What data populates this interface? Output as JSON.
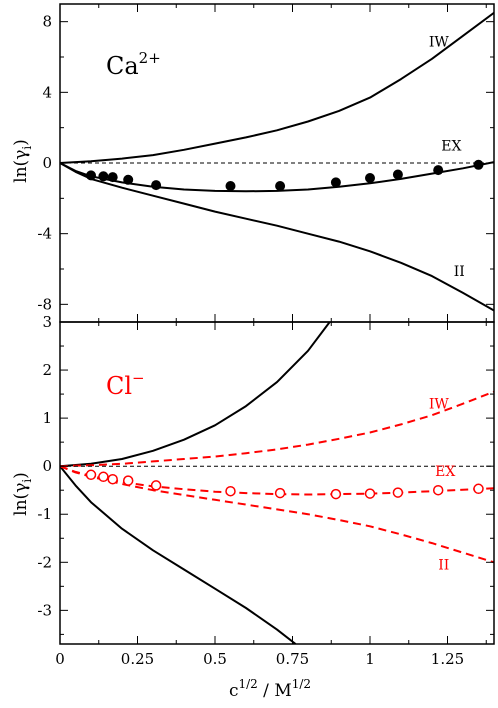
{
  "colors": {
    "black": "#000000",
    "red": "#ff0000"
  },
  "chart_data": [
    {
      "type": "line",
      "panel_label": "Ca",
      "panel_label_sup": "2+",
      "panel_label_color": "#000000",
      "ylabel": "ln(γ",
      "ylabel_sub": "i",
      "ylabel_end": ")",
      "xlim": [
        0,
        1.4
      ],
      "ylim": [
        -9,
        9
      ],
      "y_ticks": [
        8,
        4,
        0,
        -4,
        -8
      ],
      "y_tick_labels": [
        "8",
        "4",
        "0",
        "-4",
        "-8"
      ],
      "series": [
        {
          "name": "IW",
          "color": "#000000",
          "dash": false,
          "x": [
            0,
            0.1,
            0.2,
            0.3,
            0.4,
            0.5,
            0.6,
            0.7,
            0.8,
            0.9,
            1.0,
            1.1,
            1.2,
            1.3,
            1.4
          ],
          "y": [
            0,
            0.1,
            0.25,
            0.45,
            0.75,
            1.1,
            1.45,
            1.85,
            2.35,
            2.95,
            3.7,
            4.75,
            5.9,
            7.2,
            8.5
          ]
        },
        {
          "name": "EX",
          "color": "#000000",
          "dash": false,
          "x": [
            0,
            0.05,
            0.1,
            0.2,
            0.3,
            0.4,
            0.5,
            0.6,
            0.7,
            0.8,
            0.9,
            1.0,
            1.1,
            1.2,
            1.3,
            1.4
          ],
          "y": [
            0,
            -0.45,
            -0.75,
            -1.1,
            -1.35,
            -1.5,
            -1.58,
            -1.6,
            -1.58,
            -1.5,
            -1.35,
            -1.15,
            -0.9,
            -0.6,
            -0.3,
            0.05
          ]
        },
        {
          "name": "II",
          "color": "#000000",
          "dash": false,
          "x": [
            0,
            0.05,
            0.1,
            0.2,
            0.3,
            0.4,
            0.5,
            0.6,
            0.7,
            0.8,
            0.9,
            1.0,
            1.1,
            1.2,
            1.3,
            1.4
          ],
          "y": [
            0,
            -0.5,
            -0.9,
            -1.4,
            -1.85,
            -2.3,
            -2.75,
            -3.15,
            -3.55,
            -4.0,
            -4.45,
            -5.0,
            -5.65,
            -6.4,
            -7.35,
            -8.35
          ]
        },
        {
          "name": "zero",
          "color": "#000000",
          "dash": true,
          "thin": true,
          "x": [
            0,
            1.4
          ],
          "y": [
            0,
            0
          ]
        }
      ],
      "points": {
        "style": "filled",
        "color": "#000000",
        "x": [
          0.1,
          0.14,
          0.17,
          0.22,
          0.31,
          0.55,
          0.71,
          0.89,
          1.0,
          1.09,
          1.22,
          1.35
        ],
        "y": [
          -0.7,
          -0.75,
          -0.8,
          -0.95,
          -1.25,
          -1.3,
          -1.3,
          -1.1,
          -0.85,
          -0.65,
          -0.4,
          -0.1
        ]
      },
      "curve_labels": [
        {
          "text": "IW",
          "x": 1.19,
          "y": 6.6,
          "color": "#000000"
        },
        {
          "text": "EX",
          "x": 1.23,
          "y": 0.7,
          "color": "#000000"
        },
        {
          "text": "II",
          "x": 1.27,
          "y": -6.4,
          "color": "#000000"
        }
      ]
    },
    {
      "type": "line",
      "panel_label": "Cl",
      "panel_label_sup": "−",
      "panel_label_color": "#ff0000",
      "ylabel": "ln(γ",
      "ylabel_sub": "i",
      "ylabel_end": ")",
      "xlabel_pre": "c",
      "xlabel_sup1": "1/2",
      "xlabel_mid": " / M",
      "xlabel_sup2": "1/2",
      "xlim": [
        0,
        1.4
      ],
      "ylim": [
        -3.7,
        3.0
      ],
      "y_ticks": [
        3,
        2,
        1,
        0,
        -1,
        -2,
        -3
      ],
      "y_tick_labels": [
        "3",
        "2",
        "1",
        "0",
        "-1",
        "-2",
        "-3"
      ],
      "x_ticks": [
        0,
        0.25,
        0.5,
        0.75,
        1.0,
        1.25
      ],
      "x_tick_labels": [
        "0",
        "0.25",
        "0.5",
        "0.75",
        "1",
        "1.25"
      ],
      "series": [
        {
          "name": "IW-black",
          "color": "#000000",
          "dash": false,
          "x": [
            0,
            0.1,
            0.2,
            0.3,
            0.4,
            0.5,
            0.6,
            0.7,
            0.8,
            0.87,
            0.9
          ],
          "y": [
            0,
            0.05,
            0.15,
            0.32,
            0.55,
            0.85,
            1.25,
            1.75,
            2.4,
            3.0,
            3.3
          ]
        },
        {
          "name": "II-black",
          "color": "#000000",
          "dash": false,
          "x": [
            0,
            0.05,
            0.1,
            0.2,
            0.3,
            0.4,
            0.5,
            0.6,
            0.7,
            0.76
          ],
          "y": [
            0,
            -0.4,
            -0.75,
            -1.3,
            -1.75,
            -2.15,
            -2.55,
            -2.95,
            -3.4,
            -3.7
          ]
        },
        {
          "name": "IW",
          "color": "#ff0000",
          "dash": true,
          "x": [
            0,
            0.1,
            0.2,
            0.3,
            0.4,
            0.5,
            0.6,
            0.7,
            0.8,
            0.9,
            1.0,
            1.1,
            1.2,
            1.3,
            1.4
          ],
          "y": [
            0,
            0.02,
            0.05,
            0.1,
            0.15,
            0.2,
            0.27,
            0.35,
            0.45,
            0.57,
            0.7,
            0.87,
            1.06,
            1.3,
            1.55
          ]
        },
        {
          "name": "EX",
          "color": "#ff0000",
          "dash": true,
          "x": [
            0,
            0.05,
            0.1,
            0.2,
            0.3,
            0.4,
            0.5,
            0.6,
            0.7,
            0.8,
            0.9,
            1.0,
            1.1,
            1.2,
            1.3,
            1.4
          ],
          "y": [
            0,
            -0.12,
            -0.2,
            -0.33,
            -0.42,
            -0.48,
            -0.53,
            -0.56,
            -0.58,
            -0.59,
            -0.58,
            -0.57,
            -0.55,
            -0.52,
            -0.49,
            -0.46
          ]
        },
        {
          "name": "II",
          "color": "#ff0000",
          "dash": true,
          "x": [
            0,
            0.05,
            0.1,
            0.2,
            0.3,
            0.4,
            0.5,
            0.6,
            0.7,
            0.8,
            0.9,
            1.0,
            1.1,
            1.2,
            1.3,
            1.4
          ],
          "y": [
            0,
            -0.13,
            -0.22,
            -0.37,
            -0.5,
            -0.6,
            -0.7,
            -0.8,
            -0.9,
            -1.0,
            -1.12,
            -1.25,
            -1.42,
            -1.6,
            -1.8,
            -2.0
          ]
        },
        {
          "name": "zero",
          "color": "#000000",
          "dash": true,
          "thin": true,
          "x": [
            0,
            1.4
          ],
          "y": [
            0,
            0
          ]
        }
      ],
      "points": {
        "style": "open",
        "color": "#ff0000",
        "x": [
          0.1,
          0.14,
          0.17,
          0.22,
          0.31,
          0.55,
          0.71,
          0.89,
          1.0,
          1.09,
          1.22,
          1.35
        ],
        "y": [
          -0.18,
          -0.22,
          -0.27,
          -0.3,
          -0.4,
          -0.52,
          -0.56,
          -0.58,
          -0.57,
          -0.55,
          -0.5,
          -0.47
        ]
      },
      "curve_labels": [
        {
          "text": "IW",
          "x": 1.19,
          "y": 1.2,
          "color": "#ff0000"
        },
        {
          "text": "EX",
          "x": 1.21,
          "y": -0.2,
          "color": "#ff0000"
        },
        {
          "text": "II",
          "x": 1.22,
          "y": -2.15,
          "color": "#ff0000"
        }
      ]
    }
  ]
}
